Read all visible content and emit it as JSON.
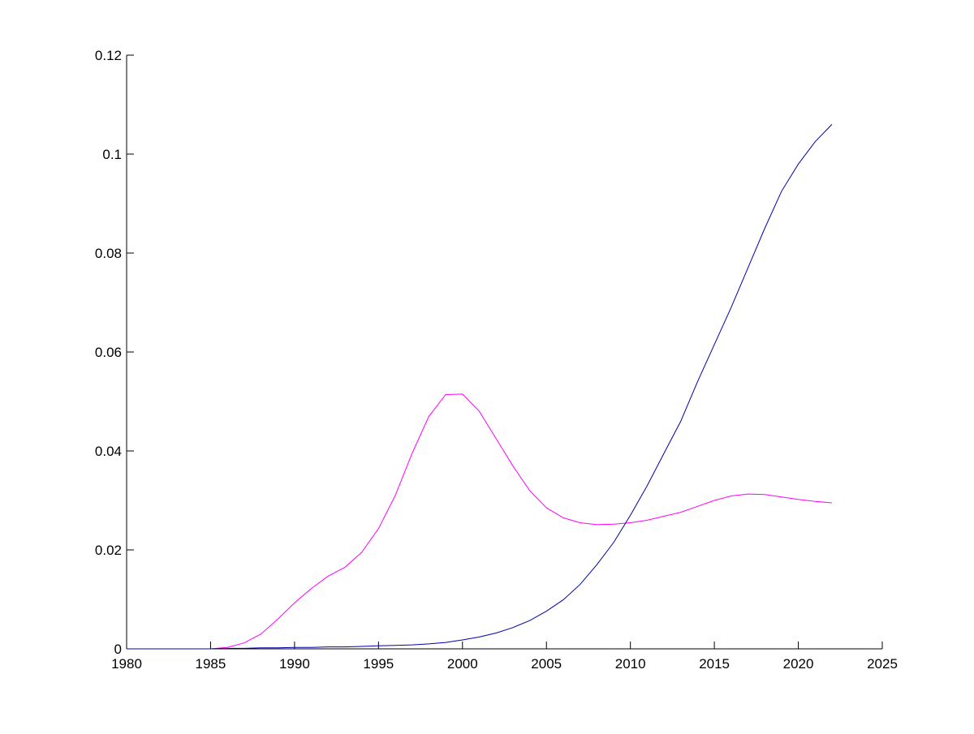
{
  "chart_data": {
    "type": "line",
    "title": "",
    "xlabel": "",
    "ylabel": "",
    "xlim": [
      1980,
      2025
    ],
    "ylim": [
      0,
      0.12
    ],
    "xticks": [
      "1980",
      "1985",
      "1990",
      "1995",
      "2000",
      "2005",
      "2010",
      "2015",
      "2020",
      "2025"
    ],
    "yticks": [
      "0",
      "0.02",
      "0.04",
      "0.06",
      "0.08",
      "0.1",
      "0.12"
    ],
    "grid": false,
    "x": [
      1980,
      1981,
      1982,
      1983,
      1984,
      1985,
      1986,
      1987,
      1988,
      1989,
      1990,
      1991,
      1992,
      1993,
      1994,
      1995,
      1996,
      1997,
      1998,
      1999,
      2000,
      2001,
      2002,
      2003,
      2004,
      2005,
      2006,
      2007,
      2008,
      2009,
      2010,
      2011,
      2012,
      2013,
      2014,
      2015,
      2016,
      2017,
      2018,
      2019,
      2020,
      2021,
      2022
    ],
    "series": [
      {
        "color": "#ff00ff",
        "values": [
          0,
          0,
          0,
          0,
          0,
          0,
          0.0003,
          0.0012,
          0.003,
          0.006,
          0.0093,
          0.0122,
          0.0147,
          0.0165,
          0.0195,
          0.0243,
          0.031,
          0.0395,
          0.047,
          0.0514,
          0.0515,
          0.048,
          0.0425,
          0.037,
          0.032,
          0.0285,
          0.0265,
          0.0255,
          0.0251,
          0.0252,
          0.0255,
          0.026,
          0.0268,
          0.0276,
          0.0288,
          0.03,
          0.0309,
          0.0313,
          0.0312,
          0.0307,
          0.0302,
          0.0298,
          0.0295
        ]
      },
      {
        "color": "#0000aa",
        "values": [
          0,
          0,
          0,
          0,
          0,
          0,
          0.0001,
          0.0001,
          0.0002,
          0.0002,
          0.0003,
          0.0003,
          0.0004,
          0.0004,
          0.0005,
          0.0006,
          0.0007,
          0.0008,
          0.001,
          0.0013,
          0.0018,
          0.0024,
          0.0032,
          0.0043,
          0.0057,
          0.0076,
          0.0099,
          0.013,
          0.017,
          0.0215,
          0.027,
          0.033,
          0.0395,
          0.046,
          0.054,
          0.0615,
          0.069,
          0.077,
          0.085,
          0.0925,
          0.098,
          0.1025,
          0.106
        ]
      }
    ]
  }
}
